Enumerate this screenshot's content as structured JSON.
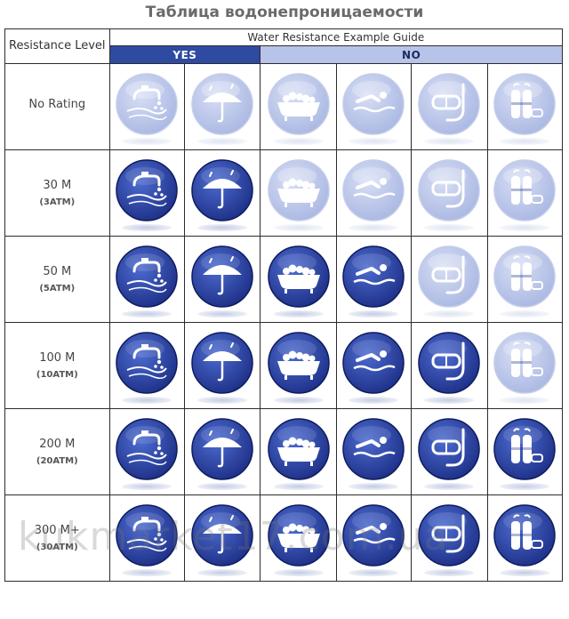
{
  "title": "Таблица водонепроницаемости",
  "header": {
    "level_label": "Resistance Level",
    "guide_label": "Water Resistance Example Guide",
    "yes_label": "YES",
    "no_label": "NO"
  },
  "activities": [
    {
      "icon": "faucet-splash-icon"
    },
    {
      "icon": "umbrella-rain-icon"
    },
    {
      "icon": "bathtub-icon"
    },
    {
      "icon": "swimmer-icon"
    },
    {
      "icon": "snorkel-mask-icon"
    },
    {
      "icon": "scuba-tanks-icon"
    }
  ],
  "rows": [
    {
      "level": "No Rating",
      "atm": "",
      "active_count": 0
    },
    {
      "level": "30 M",
      "atm": "(3ATM)",
      "active_count": 2
    },
    {
      "level": "50 M",
      "atm": "(5ATM)",
      "active_count": 4
    },
    {
      "level": "100 M",
      "atm": "(10ATM)",
      "active_count": 5
    },
    {
      "level": "200 M",
      "atm": "(20ATM)",
      "active_count": 6
    },
    {
      "level": "300 M+",
      "atm": "(30ATM)",
      "active_count": 6
    }
  ],
  "colors": {
    "active_dark": "#1d2f86",
    "active_light": "#4d6cd0",
    "inactive_dark": "#a9b7e2",
    "inactive_light": "#d7def4",
    "yes_band": "#2f4aa1",
    "no_band": "#b7c3e8"
  },
  "watermark": "kukmarket17.com.ua"
}
